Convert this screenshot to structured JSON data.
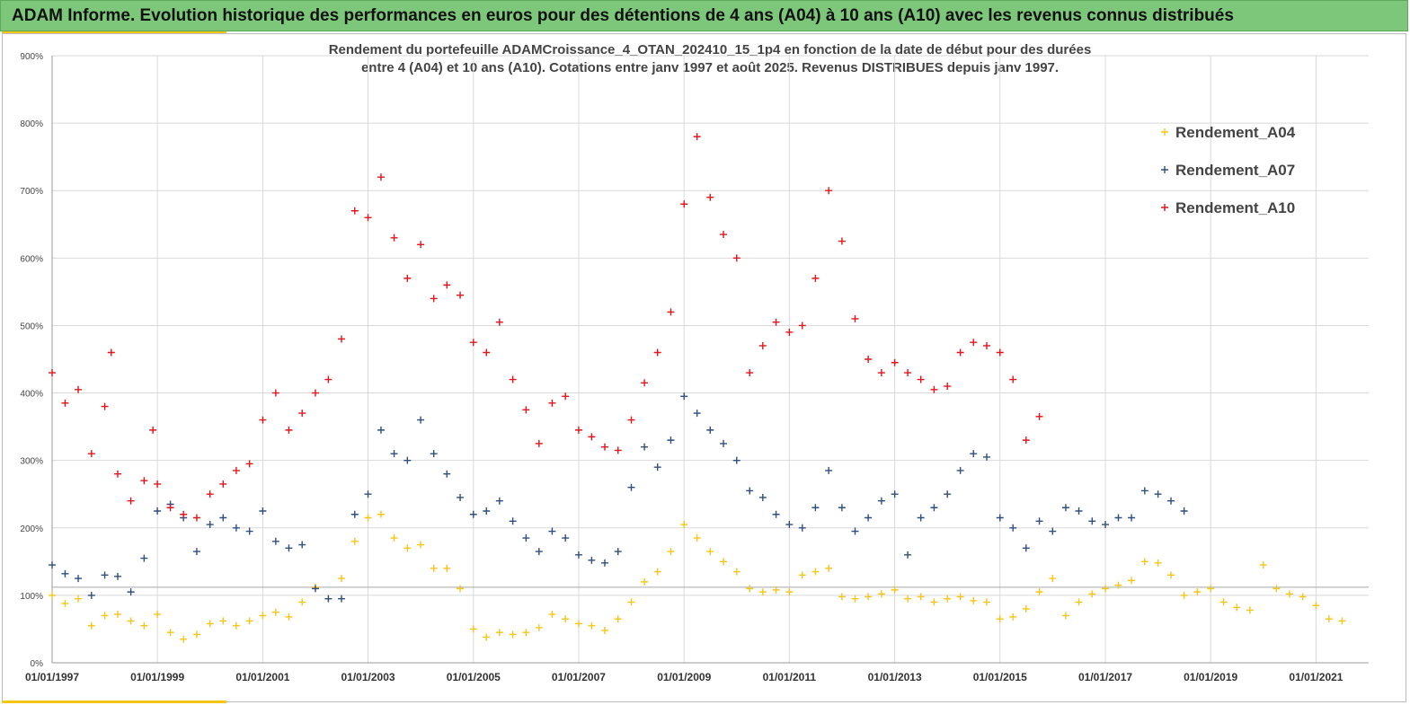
{
  "banner": {
    "title": "ADAM Informe. Evolution historique des performances en euros pour des détentions de 4 ans (A04) à 10 ans (A10) avec les revenus connus distribués"
  },
  "colors": {
    "banner_bg": "#7dc77a",
    "accent": "#f5c518",
    "A04": "#f5c518",
    "A07": "#2f4f7f",
    "A10": "#e3141b"
  },
  "chart_data": {
    "type": "scatter",
    "title_line1": "Rendement du portefeuille ADAMCroissance_4_OTAN_202410_15_1p4  en fonction de la date de début pour des durées",
    "title_line2": "entre 4 (A04) et 10 ans (A10). Cotations  entre janv 1997 et août 2025. Revenus DISTRIBUES depuis janv 1997.",
    "xlabel": "",
    "ylabel": "",
    "x_range": [
      "1997-01-01",
      "2022-01-01"
    ],
    "ylim": [
      0,
      900
    ],
    "y_unit": "%",
    "y_ticks": [
      "0%",
      "100%",
      "200%",
      "300%",
      "400%",
      "500%",
      "600%",
      "700%",
      "800%",
      "900%"
    ],
    "x_ticks": [
      "01/01/1997",
      "01/01/1999",
      "01/01/2001",
      "01/01/2003",
      "01/01/2005",
      "01/01/2007",
      "01/01/2009",
      "01/01/2011",
      "01/01/2013",
      "01/01/2015",
      "01/01/2017",
      "01/01/2019",
      "01/01/2021"
    ],
    "grid": true,
    "reference_line": 112,
    "legend_position": "top-right",
    "marker": "+",
    "series": [
      {
        "name": "Rendement_A04",
        "key": "A04",
        "points": [
          [
            "1997-01-01",
            100
          ],
          [
            "1997-04-01",
            88
          ],
          [
            "1997-07-01",
            95
          ],
          [
            "1997-10-01",
            55
          ],
          [
            "1998-01-01",
            70
          ],
          [
            "1998-04-01",
            72
          ],
          [
            "1998-07-01",
            62
          ],
          [
            "1998-10-01",
            55
          ],
          [
            "1999-01-01",
            72
          ],
          [
            "1999-04-01",
            45
          ],
          [
            "1999-07-01",
            35
          ],
          [
            "1999-10-01",
            42
          ],
          [
            "2000-01-01",
            58
          ],
          [
            "2000-04-01",
            62
          ],
          [
            "2000-07-01",
            55
          ],
          [
            "2000-10-01",
            62
          ],
          [
            "2001-01-01",
            70
          ],
          [
            "2001-04-01",
            75
          ],
          [
            "2001-07-01",
            68
          ],
          [
            "2001-10-01",
            90
          ],
          [
            "2002-01-01",
            112
          ],
          [
            "2002-04-01",
            95
          ],
          [
            "2002-07-01",
            125
          ],
          [
            "2002-10-01",
            180
          ],
          [
            "2003-01-01",
            215
          ],
          [
            "2003-04-01",
            220
          ],
          [
            "2003-07-01",
            185
          ],
          [
            "2003-10-01",
            170
          ],
          [
            "2004-01-01",
            175
          ],
          [
            "2004-04-01",
            140
          ],
          [
            "2004-07-01",
            140
          ],
          [
            "2004-10-01",
            110
          ],
          [
            "2005-01-01",
            50
          ],
          [
            "2005-04-01",
            38
          ],
          [
            "2005-07-01",
            45
          ],
          [
            "2005-10-01",
            42
          ],
          [
            "2006-01-01",
            45
          ],
          [
            "2006-04-01",
            52
          ],
          [
            "2006-07-01",
            72
          ],
          [
            "2006-10-01",
            65
          ],
          [
            "2007-01-01",
            58
          ],
          [
            "2007-04-01",
            55
          ],
          [
            "2007-07-01",
            48
          ],
          [
            "2007-10-01",
            65
          ],
          [
            "2008-01-01",
            90
          ],
          [
            "2008-04-01",
            120
          ],
          [
            "2008-07-01",
            135
          ],
          [
            "2008-10-01",
            165
          ],
          [
            "2009-01-01",
            205
          ],
          [
            "2009-04-01",
            185
          ],
          [
            "2009-07-01",
            165
          ],
          [
            "2009-10-01",
            150
          ],
          [
            "2010-01-01",
            135
          ],
          [
            "2010-04-01",
            110
          ],
          [
            "2010-07-01",
            105
          ],
          [
            "2010-10-01",
            108
          ],
          [
            "2011-01-01",
            105
          ],
          [
            "2011-04-01",
            130
          ],
          [
            "2011-07-01",
            135
          ],
          [
            "2011-10-01",
            140
          ],
          [
            "2012-01-01",
            98
          ],
          [
            "2012-04-01",
            95
          ],
          [
            "2012-07-01",
            98
          ],
          [
            "2012-10-01",
            102
          ],
          [
            "2013-01-01",
            108
          ],
          [
            "2013-04-01",
            95
          ],
          [
            "2013-07-01",
            98
          ],
          [
            "2013-10-01",
            90
          ],
          [
            "2014-01-01",
            95
          ],
          [
            "2014-04-01",
            98
          ],
          [
            "2014-07-01",
            92
          ],
          [
            "2014-10-01",
            90
          ],
          [
            "2015-01-01",
            65
          ],
          [
            "2015-04-01",
            68
          ],
          [
            "2015-07-01",
            80
          ],
          [
            "2015-10-01",
            105
          ],
          [
            "2016-01-01",
            125
          ],
          [
            "2016-04-01",
            70
          ],
          [
            "2016-07-01",
            90
          ],
          [
            "2016-10-01",
            102
          ],
          [
            "2017-01-01",
            110
          ],
          [
            "2017-04-01",
            115
          ],
          [
            "2017-07-01",
            122
          ],
          [
            "2017-10-01",
            150
          ],
          [
            "2018-01-01",
            148
          ],
          [
            "2018-04-01",
            130
          ],
          [
            "2018-07-01",
            100
          ],
          [
            "2018-10-01",
            105
          ],
          [
            "2019-01-01",
            110
          ],
          [
            "2019-04-01",
            90
          ],
          [
            "2019-07-01",
            82
          ],
          [
            "2019-10-01",
            78
          ],
          [
            "2020-01-01",
            145
          ],
          [
            "2020-04-01",
            110
          ],
          [
            "2020-07-01",
            102
          ],
          [
            "2020-10-01",
            98
          ],
          [
            "2021-01-01",
            85
          ],
          [
            "2021-04-01",
            65
          ],
          [
            "2021-07-01",
            62
          ]
        ]
      },
      {
        "name": "Rendement_A07",
        "key": "A07",
        "points": [
          [
            "1997-01-01",
            145
          ],
          [
            "1997-04-01",
            132
          ],
          [
            "1997-07-01",
            125
          ],
          [
            "1997-10-01",
            100
          ],
          [
            "1998-01-01",
            130
          ],
          [
            "1998-04-01",
            128
          ],
          [
            "1998-07-01",
            105
          ],
          [
            "1998-10-01",
            155
          ],
          [
            "1999-01-01",
            225
          ],
          [
            "1999-04-01",
            235
          ],
          [
            "1999-07-01",
            215
          ],
          [
            "1999-10-01",
            165
          ],
          [
            "2000-01-01",
            205
          ],
          [
            "2000-04-01",
            215
          ],
          [
            "2000-07-01",
            200
          ],
          [
            "2000-10-01",
            195
          ],
          [
            "2001-01-01",
            225
          ],
          [
            "2001-04-01",
            180
          ],
          [
            "2001-07-01",
            170
          ],
          [
            "2001-10-01",
            175
          ],
          [
            "2002-01-01",
            110
          ],
          [
            "2002-04-01",
            95
          ],
          [
            "2002-07-01",
            95
          ],
          [
            "2002-10-01",
            220
          ],
          [
            "2003-01-01",
            250
          ],
          [
            "2003-04-01",
            345
          ],
          [
            "2003-07-01",
            310
          ],
          [
            "2003-10-01",
            300
          ],
          [
            "2004-01-01",
            360
          ],
          [
            "2004-04-01",
            310
          ],
          [
            "2004-07-01",
            280
          ],
          [
            "2004-10-01",
            245
          ],
          [
            "2005-01-01",
            220
          ],
          [
            "2005-04-01",
            225
          ],
          [
            "2005-07-01",
            240
          ],
          [
            "2005-10-01",
            210
          ],
          [
            "2006-01-01",
            185
          ],
          [
            "2006-04-01",
            165
          ],
          [
            "2006-07-01",
            195
          ],
          [
            "2006-10-01",
            185
          ],
          [
            "2007-01-01",
            160
          ],
          [
            "2007-04-01",
            152
          ],
          [
            "2007-07-01",
            148
          ],
          [
            "2007-10-01",
            165
          ],
          [
            "2008-01-01",
            260
          ],
          [
            "2008-04-01",
            320
          ],
          [
            "2008-07-01",
            290
          ],
          [
            "2008-10-01",
            330
          ],
          [
            "2009-01-01",
            395
          ],
          [
            "2009-04-01",
            370
          ],
          [
            "2009-07-01",
            345
          ],
          [
            "2009-10-01",
            325
          ],
          [
            "2010-01-01",
            300
          ],
          [
            "2010-04-01",
            255
          ],
          [
            "2010-07-01",
            245
          ],
          [
            "2010-10-01",
            220
          ],
          [
            "2011-01-01",
            205
          ],
          [
            "2011-04-01",
            200
          ],
          [
            "2011-07-01",
            230
          ],
          [
            "2011-10-01",
            285
          ],
          [
            "2012-01-01",
            230
          ],
          [
            "2012-04-01",
            195
          ],
          [
            "2012-07-01",
            215
          ],
          [
            "2012-10-01",
            240
          ],
          [
            "2013-01-01",
            250
          ],
          [
            "2013-04-01",
            160
          ],
          [
            "2013-07-01",
            215
          ],
          [
            "2013-10-01",
            230
          ],
          [
            "2014-01-01",
            250
          ],
          [
            "2014-04-01",
            285
          ],
          [
            "2014-07-01",
            310
          ],
          [
            "2014-10-01",
            305
          ],
          [
            "2015-01-01",
            215
          ],
          [
            "2015-04-01",
            200
          ],
          [
            "2015-07-01",
            170
          ],
          [
            "2015-10-01",
            210
          ],
          [
            "2016-01-01",
            195
          ],
          [
            "2016-04-01",
            230
          ],
          [
            "2016-07-01",
            225
          ],
          [
            "2016-10-01",
            210
          ],
          [
            "2017-01-01",
            205
          ],
          [
            "2017-04-01",
            215
          ],
          [
            "2017-07-01",
            215
          ],
          [
            "2017-10-01",
            255
          ],
          [
            "2018-01-01",
            250
          ],
          [
            "2018-04-01",
            240
          ],
          [
            "2018-07-01",
            225
          ]
        ]
      },
      {
        "name": "Rendement_A10",
        "key": "A10",
        "points": [
          [
            "1997-01-01",
            430
          ],
          [
            "1997-04-01",
            385
          ],
          [
            "1997-07-01",
            405
          ],
          [
            "1997-10-01",
            310
          ],
          [
            "1998-01-01",
            380
          ],
          [
            "1998-02-15",
            460
          ],
          [
            "1998-04-01",
            280
          ],
          [
            "1998-07-01",
            240
          ],
          [
            "1998-10-01",
            270
          ],
          [
            "1998-12-01",
            345
          ],
          [
            "1999-01-01",
            265
          ],
          [
            "1999-04-01",
            230
          ],
          [
            "1999-07-01",
            220
          ],
          [
            "1999-10-01",
            215
          ],
          [
            "2000-01-01",
            250
          ],
          [
            "2000-04-01",
            265
          ],
          [
            "2000-07-01",
            285
          ],
          [
            "2000-10-01",
            295
          ],
          [
            "2001-01-01",
            360
          ],
          [
            "2001-04-01",
            400
          ],
          [
            "2001-07-01",
            345
          ],
          [
            "2001-10-01",
            370
          ],
          [
            "2002-01-01",
            400
          ],
          [
            "2002-04-01",
            420
          ],
          [
            "2002-07-01",
            480
          ],
          [
            "2002-10-01",
            670
          ],
          [
            "2003-01-01",
            660
          ],
          [
            "2003-04-01",
            720
          ],
          [
            "2003-07-01",
            630
          ],
          [
            "2003-10-01",
            570
          ],
          [
            "2004-01-01",
            620
          ],
          [
            "2004-04-01",
            540
          ],
          [
            "2004-07-01",
            560
          ],
          [
            "2004-10-01",
            545
          ],
          [
            "2005-01-01",
            475
          ],
          [
            "2005-04-01",
            460
          ],
          [
            "2005-07-01",
            505
          ],
          [
            "2005-10-01",
            420
          ],
          [
            "2006-01-01",
            375
          ],
          [
            "2006-04-01",
            325
          ],
          [
            "2006-07-01",
            385
          ],
          [
            "2006-10-01",
            395
          ],
          [
            "2007-01-01",
            345
          ],
          [
            "2007-04-01",
            335
          ],
          [
            "2007-07-01",
            320
          ],
          [
            "2007-10-01",
            315
          ],
          [
            "2008-01-01",
            360
          ],
          [
            "2008-04-01",
            415
          ],
          [
            "2008-07-01",
            460
          ],
          [
            "2008-10-01",
            520
          ],
          [
            "2009-01-01",
            680
          ],
          [
            "2009-04-01",
            780
          ],
          [
            "2009-07-01",
            690
          ],
          [
            "2009-10-01",
            635
          ],
          [
            "2010-01-01",
            600
          ],
          [
            "2010-04-01",
            430
          ],
          [
            "2010-07-01",
            470
          ],
          [
            "2010-10-01",
            505
          ],
          [
            "2011-01-01",
            490
          ],
          [
            "2011-04-01",
            500
          ],
          [
            "2011-07-01",
            570
          ],
          [
            "2011-10-01",
            700
          ],
          [
            "2012-01-01",
            625
          ],
          [
            "2012-04-01",
            510
          ],
          [
            "2012-07-01",
            450
          ],
          [
            "2012-10-01",
            430
          ],
          [
            "2013-01-01",
            445
          ],
          [
            "2013-04-01",
            430
          ],
          [
            "2013-07-01",
            420
          ],
          [
            "2013-10-01",
            405
          ],
          [
            "2014-01-01",
            410
          ],
          [
            "2014-04-01",
            460
          ],
          [
            "2014-07-01",
            475
          ],
          [
            "2014-10-01",
            470
          ],
          [
            "2015-01-01",
            460
          ],
          [
            "2015-04-01",
            420
          ],
          [
            "2015-07-01",
            330
          ],
          [
            "2015-10-01",
            365
          ]
        ]
      }
    ]
  }
}
